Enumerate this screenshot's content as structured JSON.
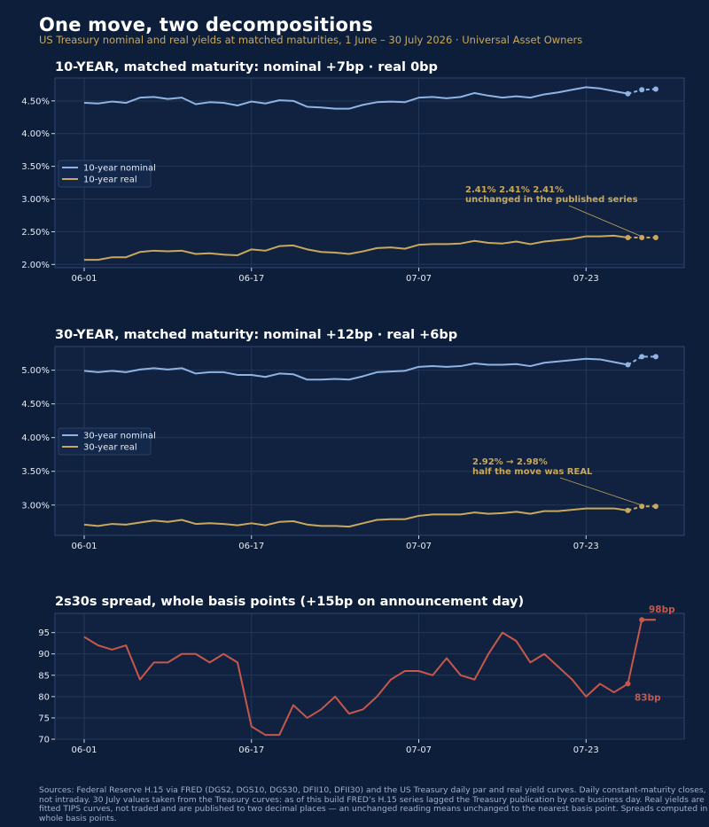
{
  "header": {
    "title": "One move, two decompositions",
    "subtitle": "US Treasury nominal and real yields at matched maturities, 1 June – 30 July 2026   ·   Universal Asset Owners"
  },
  "footer": {
    "sources": "Sources: Federal Reserve H.15 via FRED (DGS2, DGS10, DGS30, DFII10, DFII30) and the US Treasury daily par and real yield curves. Daily constant-maturity closes, not intraday. 30 July values taken from the Treasury curves: as of this build FRED’s H.15 series lagged the Treasury publication by one business day. Real yields are fitted TIPS curves, not traded and are published to two decimal places — an unchanged reading means unchanged to the nearest basis point. Spreads computed in whole basis points."
  },
  "colors": {
    "background": "#0d1e3b",
    "plot_background": "#102240",
    "grid": "#22385a",
    "axis": "#2e4670",
    "nominal": "#8fb4e3",
    "real": "#c9a85c",
    "spread": "#c8574a"
  },
  "chart_data": [
    {
      "type": "line",
      "title": "10-YEAR, matched maturity:  nominal +7bp   ·   real 0bp",
      "x_ticks": [
        "06-01",
        "06-17",
        "07-07",
        "07-23"
      ],
      "y_ticks": [
        "2.00%",
        "2.50%",
        "3.00%",
        "3.50%",
        "4.00%",
        "4.50%"
      ],
      "ylim": [
        1.95,
        4.85
      ],
      "grid": true,
      "legend_position": "center-left",
      "series": [
        {
          "name": "10-year nominal",
          "color": "#8fb4e3",
          "values": [
            4.47,
            4.46,
            4.49,
            4.47,
            4.55,
            4.56,
            4.53,
            4.55,
            4.45,
            4.48,
            4.47,
            4.43,
            4.49,
            4.46,
            4.51,
            4.5,
            4.41,
            4.4,
            4.38,
            4.38,
            4.44,
            4.48,
            4.49,
            4.48,
            4.55,
            4.56,
            4.54,
            4.56,
            4.62,
            4.58,
            4.55,
            4.57,
            4.55,
            4.6,
            4.63,
            4.67,
            4.71,
            4.69,
            4.65,
            4.61,
            4.67,
            4.68
          ]
        },
        {
          "name": "10-year real",
          "color": "#c9a85c",
          "values": [
            2.07,
            2.07,
            2.11,
            2.11,
            2.19,
            2.21,
            2.2,
            2.21,
            2.16,
            2.17,
            2.15,
            2.14,
            2.23,
            2.21,
            2.28,
            2.29,
            2.23,
            2.19,
            2.18,
            2.16,
            2.2,
            2.25,
            2.26,
            2.24,
            2.3,
            2.31,
            2.31,
            2.32,
            2.36,
            2.33,
            2.32,
            2.35,
            2.31,
            2.35,
            2.37,
            2.39,
            2.43,
            2.43,
            2.44,
            2.41,
            2.41,
            2.41
          ]
        }
      ],
      "annotation": {
        "line1": "2.41%  2.41%  2.41%",
        "line2": "unchanged in the published series"
      }
    },
    {
      "type": "line",
      "title": "30-YEAR, matched maturity:  nominal +12bp   ·   real +6bp",
      "x_ticks": [
        "06-01",
        "06-17",
        "07-07",
        "07-23"
      ],
      "y_ticks": [
        "3.00%",
        "3.50%",
        "4.00%",
        "4.50%",
        "5.00%"
      ],
      "ylim": [
        2.55,
        5.35
      ],
      "grid": true,
      "legend_position": "center-left",
      "series": [
        {
          "name": "30-year nominal",
          "color": "#8fb4e3",
          "values": [
            4.99,
            4.97,
            4.99,
            4.97,
            5.01,
            5.03,
            5.01,
            5.03,
            4.95,
            4.97,
            4.97,
            4.93,
            4.93,
            4.9,
            4.95,
            4.94,
            4.86,
            4.86,
            4.87,
            4.86,
            4.91,
            4.97,
            4.98,
            4.99,
            5.05,
            5.06,
            5.05,
            5.06,
            5.1,
            5.08,
            5.08,
            5.09,
            5.06,
            5.11,
            5.13,
            5.15,
            5.17,
            5.16,
            5.12,
            5.08,
            5.2,
            5.2
          ]
        },
        {
          "name": "30-year real",
          "color": "#c9a85c",
          "values": [
            2.71,
            2.69,
            2.72,
            2.71,
            2.74,
            2.77,
            2.75,
            2.78,
            2.72,
            2.73,
            2.72,
            2.7,
            2.73,
            2.7,
            2.75,
            2.76,
            2.71,
            2.69,
            2.69,
            2.68,
            2.73,
            2.78,
            2.79,
            2.79,
            2.84,
            2.86,
            2.86,
            2.86,
            2.89,
            2.87,
            2.88,
            2.9,
            2.87,
            2.91,
            2.91,
            2.93,
            2.95,
            2.95,
            2.95,
            2.92,
            2.98,
            2.98
          ]
        }
      ],
      "annotation": {
        "line1": "2.92% → 2.98%",
        "line2": "half the move was REAL"
      }
    },
    {
      "type": "line",
      "title": "2s30s spread, whole basis points  (+15bp on announcement day)",
      "x_ticks": [
        "06-01",
        "06-17",
        "07-07",
        "07-23"
      ],
      "y_ticks": [
        "70",
        "75",
        "80",
        "85",
        "90",
        "95"
      ],
      "ylim": [
        70,
        99.5
      ],
      "grid": true,
      "series": [
        {
          "name": "",
          "color": "#c8574a",
          "values": [
            94,
            92,
            91,
            92,
            84,
            88,
            88,
            90,
            90,
            88,
            90,
            88,
            73,
            71,
            71,
            78,
            75,
            77,
            80,
            76,
            77,
            80,
            84,
            86,
            86,
            85,
            89,
            85,
            84,
            90,
            95,
            93,
            88,
            90,
            87,
            84,
            80,
            83,
            81,
            83,
            98,
            98
          ]
        }
      ],
      "end_labels": {
        "before": "83bp",
        "after": "98bp"
      }
    }
  ]
}
